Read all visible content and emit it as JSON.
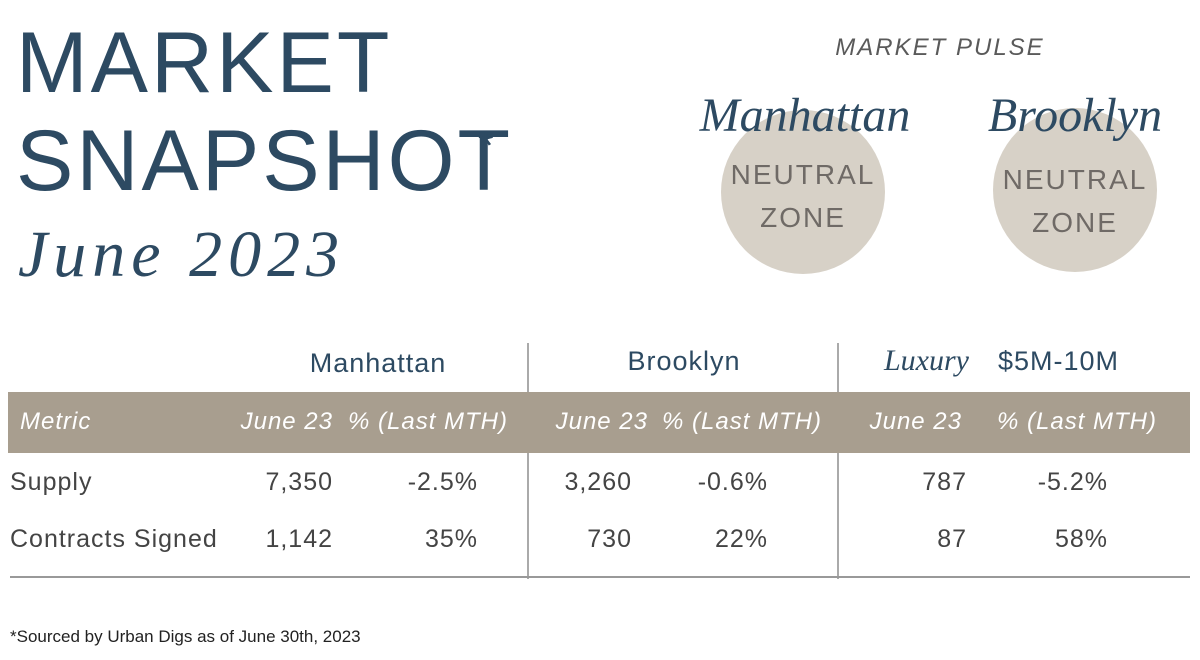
{
  "header": {
    "title_line1": "MARKET",
    "title_line2": "SNAPSHOT",
    "asterisk": "*",
    "date": "June 2023"
  },
  "market_pulse": {
    "title": "MARKET PULSE",
    "markets": [
      {
        "name": "Manhattan",
        "status_line1": "NEUTRAL",
        "status_line2": "ZONE"
      },
      {
        "name": "Brooklyn",
        "status_line1": "NEUTRAL",
        "status_line2": "ZONE"
      }
    ]
  },
  "table": {
    "groups": [
      {
        "label": "Manhattan"
      },
      {
        "label": "Brooklyn"
      },
      {
        "label": "Luxury",
        "sublabel": "$5M-10M"
      }
    ],
    "columns": [
      "Metric",
      "June 23",
      "% (Last MTH)",
      "June 23",
      "% (Last MTH)",
      "June 23",
      "% (Last MTH)"
    ],
    "rows": [
      [
        "Supply",
        "7,350",
        "-2.5%",
        "3,260",
        "-0.6%",
        "787",
        "-5.2%"
      ],
      [
        "Contracts Signed",
        "1,142",
        "35%",
        "730",
        "22%",
        "87",
        "58%"
      ]
    ]
  },
  "footnote": "*Sourced by Urban Digs as of June 30th, 2023"
}
